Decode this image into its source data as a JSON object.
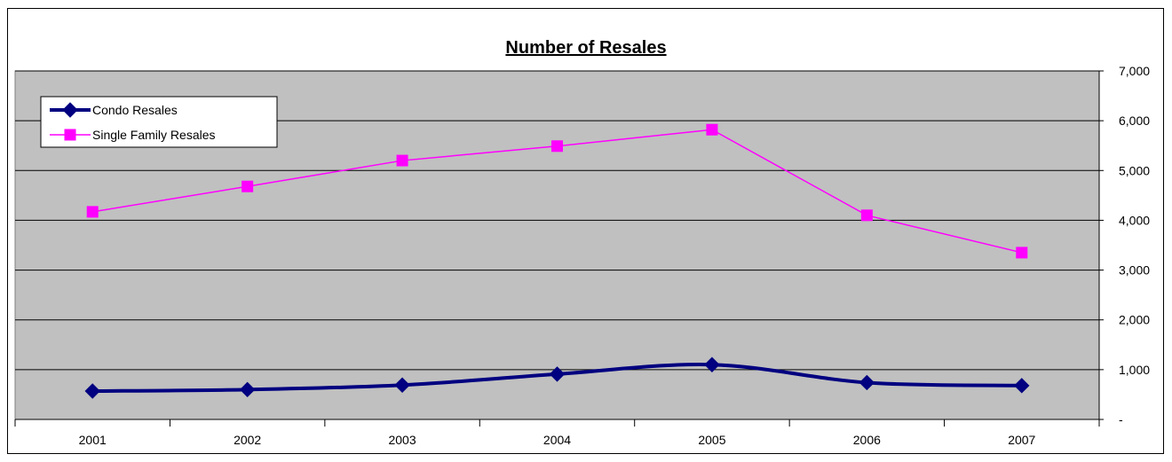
{
  "chart_data": {
    "type": "line",
    "title": "Number of Resales",
    "xlabel": "",
    "ylabel": "",
    "categories": [
      "2001",
      "2002",
      "2003",
      "2004",
      "2005",
      "2006",
      "2007"
    ],
    "ylim": [
      0,
      7000
    ],
    "yticks": [
      0,
      1000,
      2000,
      3000,
      4000,
      5000,
      6000,
      7000
    ],
    "ytick_labels": [
      "-",
      "1,000",
      "2,000",
      "3,000",
      "4,000",
      "5,000",
      "6,000",
      "7,000"
    ],
    "y_axis_side": "right",
    "grid": true,
    "legend_position": "top-left",
    "plot_background": "#C0C0C0",
    "series": [
      {
        "name": "Condo Resales",
        "values": [
          570,
          600,
          690,
          910,
          1100,
          740,
          680
        ],
        "color": "#000080",
        "marker": "diamond",
        "smooth": true
      },
      {
        "name": "Single Family Resales",
        "values": [
          4170,
          4680,
          5200,
          5490,
          5820,
          4100,
          3350
        ],
        "color": "#FF00FF",
        "marker": "square",
        "smooth": false
      }
    ]
  }
}
